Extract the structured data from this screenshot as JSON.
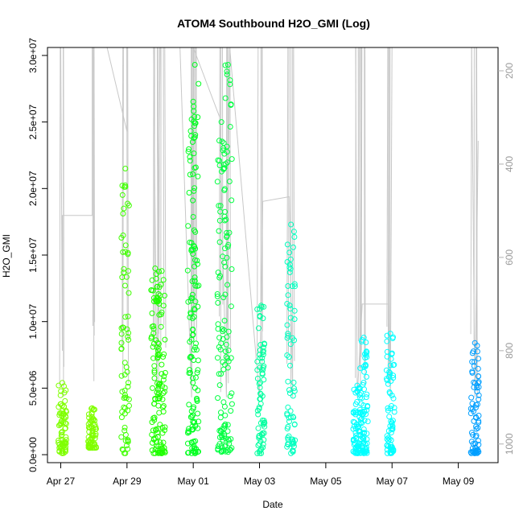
{
  "chart_data": {
    "type": "scatter",
    "title": "ATOM4 Southbound H2O_GMI (Log)",
    "xlabel": "Date",
    "ylabel": "H2O_GMI",
    "x_ticks": [
      "Apr 27",
      "Apr 29",
      "May 01",
      "May 03",
      "May 05",
      "May 07",
      "May 09"
    ],
    "x_tick_days": [
      0,
      2,
      4,
      6,
      8,
      10,
      12
    ],
    "xlim_days": [
      -0.4,
      13.2
    ],
    "y_ticks": [
      "0.0e+00",
      "5.0e+06",
      "1.0e+07",
      "1.5e+07",
      "2.0e+07",
      "2.5e+07",
      "3.0e+07"
    ],
    "y_tick_values": [
      0,
      5000000,
      10000000,
      15000000,
      20000000,
      25000000,
      30000000
    ],
    "ylim": [
      -600000,
      30600000
    ],
    "right_axis": {
      "color": "#b0b0b0",
      "ticks": [
        "200",
        "400",
        "600",
        "800",
        "1000"
      ],
      "tick_values": [
        200,
        400,
        600,
        800,
        1000
      ],
      "lim": [
        1040,
        150
      ],
      "inverted": true
    },
    "grid": false,
    "legend": "none",
    "series": [
      {
        "day": 0.05,
        "color": "#7fff00",
        "max": 5400000,
        "min": 100000
      },
      {
        "day": 0.95,
        "color": "#80ff00",
        "max": 3500000,
        "min": 500000
      },
      {
        "day": 1.95,
        "color": "#3fff00",
        "max": 21500000,
        "min": 100000
      },
      {
        "day": 2.85,
        "color": "#1fff00",
        "max": 14000000,
        "min": 100000
      },
      {
        "day": 3.05,
        "color": "#1fff00",
        "max": 13800000,
        "min": 100000
      },
      {
        "day": 3.95,
        "color": "#00ff20",
        "max": 25200000,
        "min": 100000
      },
      {
        "day": 4.05,
        "color": "#00ff20",
        "max": 29300000,
        "min": 100000
      },
      {
        "day": 4.85,
        "color": "#00ff40",
        "max": 25000000,
        "min": 200000
      },
      {
        "day": 5.05,
        "color": "#00ff40",
        "max": 29300000,
        "min": 200000
      },
      {
        "day": 6.05,
        "color": "#00ff9f",
        "max": 11200000,
        "min": 100000
      },
      {
        "day": 6.95,
        "color": "#00ffbf",
        "max": 17300000,
        "min": 100000
      },
      {
        "day": 8.95,
        "color": "#00ffff",
        "max": 5200000,
        "min": 100000
      },
      {
        "day": 9.15,
        "color": "#00ffff",
        "max": 8800000,
        "min": 100000
      },
      {
        "day": 9.95,
        "color": "#00ffff",
        "max": 9100000,
        "min": 100000
      },
      {
        "day": 12.5,
        "color": "#009fff",
        "max": 8400000,
        "min": 100000
      }
    ],
    "pressure_trace": {
      "color": "#c8c8c8",
      "points": [
        [
          0.0,
          150
        ],
        [
          0.05,
          800
        ],
        [
          0.05,
          510
        ],
        [
          0.95,
          510
        ],
        [
          0.95,
          150
        ],
        [
          1.4,
          150
        ],
        [
          2.0,
          330
        ],
        [
          2.0,
          150
        ],
        [
          2.8,
          150
        ],
        [
          2.9,
          900
        ],
        [
          3.0,
          150
        ],
        [
          3.6,
          150
        ],
        [
          3.95,
          900
        ],
        [
          4.0,
          150
        ],
        [
          4.8,
          300
        ],
        [
          5.0,
          900
        ],
        [
          5.1,
          150
        ],
        [
          6.0,
          900
        ],
        [
          6.1,
          480
        ],
        [
          6.9,
          470
        ],
        [
          7.0,
          900
        ],
        [
          7.0,
          150
        ],
        [
          8.9,
          150
        ],
        [
          8.95,
          900
        ],
        [
          9.1,
          700
        ],
        [
          9.9,
          700
        ],
        [
          9.95,
          900
        ],
        [
          10.0,
          150
        ],
        [
          12.4,
          150
        ],
        [
          12.5,
          900
        ],
        [
          12.6,
          350
        ]
      ]
    }
  }
}
